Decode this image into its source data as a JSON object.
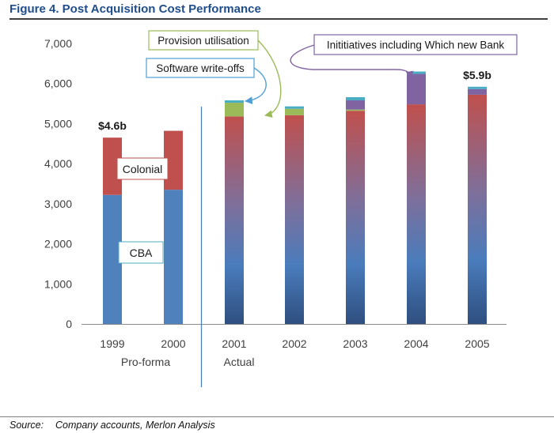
{
  "figure": {
    "title": "Figure 4.  Post Acquisition Cost Performance",
    "source_label": "Source:",
    "source_text": "Company accounts, Merlon Analysis"
  },
  "chart_data": {
    "type": "bar",
    "stacked": true,
    "title": "Figure 4.  Post Acquisition Cost Performance",
    "xlabel": "",
    "ylabel": "",
    "categories": [
      "1999",
      "2000",
      "2001",
      "2002",
      "2003",
      "2004",
      "2005"
    ],
    "ylim": [
      0,
      7000
    ],
    "yticks": [
      0,
      1000,
      2000,
      3000,
      4000,
      5000,
      6000,
      7000
    ],
    "ytick_labels": [
      "0",
      "1,000",
      "2,000",
      "3,000",
      "4,000",
      "5,000",
      "6,000",
      "7,000"
    ],
    "grid": false,
    "group_labels": [
      {
        "label": "Pro-forma",
        "categories": [
          "1999",
          "2000"
        ]
      },
      {
        "label": "Actual",
        "categories": [
          "2001",
          "2002",
          "2003",
          "2004",
          "2005"
        ]
      }
    ],
    "series": [
      {
        "key": "cba",
        "values": [
          3220,
          3350,
          null,
          null,
          null,
          null,
          null
        ],
        "color": "#4f81bd"
      },
      {
        "key": "colonial",
        "values": [
          1430,
          1470,
          null,
          null,
          null,
          null,
          null
        ],
        "color": "#c0504d"
      },
      {
        "key": "base",
        "values": [
          null,
          null,
          5180,
          5210,
          5320,
          5480,
          5720
        ],
        "color_top": "#c0504d",
        "color_mid": "#4f81bd",
        "color_bottom": "#2f4f7f"
      },
      {
        "key": "provision",
        "values": [
          null,
          null,
          340,
          160,
          30,
          null,
          null
        ],
        "color": "#9bbb59"
      },
      {
        "key": "initiatives",
        "values": [
          null,
          null,
          null,
          null,
          230,
          760,
          140
        ],
        "color": "#8064a2"
      },
      {
        "key": "software",
        "values": [
          null,
          null,
          60,
          60,
          80,
          60,
          60
        ],
        "color": "#4bacc6"
      }
    ],
    "annotations": {
      "bar_labels": [
        {
          "category": "1999",
          "text": "$4.6b"
        },
        {
          "category": "2005",
          "text": "$5.9b"
        }
      ],
      "segment_labels": [
        {
          "text": "Colonial",
          "category": "1999",
          "series": "colonial"
        },
        {
          "text": "CBA",
          "category": "1999",
          "series": "cba"
        }
      ],
      "callouts": [
        {
          "text": "Provision utilisation",
          "color": "#9bbb59",
          "target_category": "2001",
          "target_series": "provision"
        },
        {
          "text": "Software write-offs",
          "color": "#4f9fd6",
          "target_category": "2001",
          "target_series": "software"
        },
        {
          "text": "Inititiatives including Which new Bank",
          "color": "#8064a2",
          "target_category": "2004",
          "target_series": "initiatives"
        }
      ]
    }
  }
}
